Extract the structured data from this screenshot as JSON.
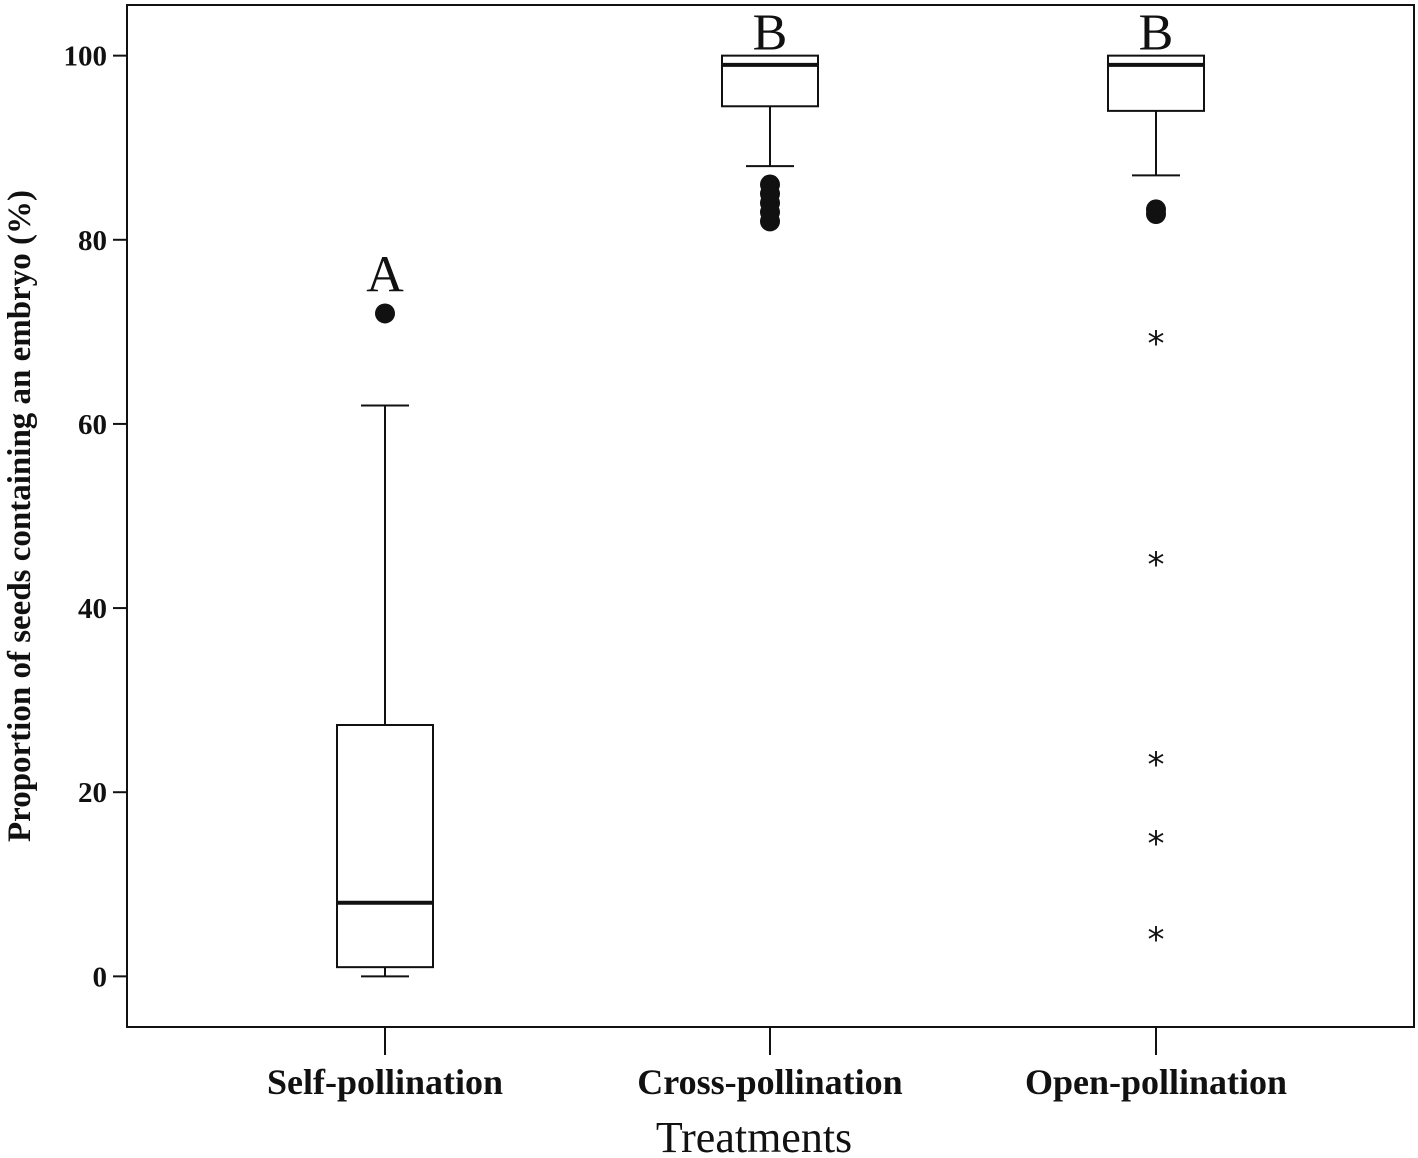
{
  "chart_data": {
    "type": "box",
    "xlabel": "Treatments",
    "ylabel": "Proportion of seeds containing an embryo (%)",
    "ylim": [
      -5.5,
      105.5
    ],
    "yticks": [
      "0",
      "20",
      "40",
      "60",
      "80",
      "100"
    ],
    "grid": false,
    "categories": [
      "Self-pollination",
      "Cross-pollination",
      "Open-pollination"
    ],
    "groups": [
      {
        "category": "Self-pollination",
        "letter": "A",
        "whisker_low": 0,
        "q1": 1,
        "median": 8,
        "q3": 27.3,
        "whisker_high": 62,
        "outliers": [
          72
        ],
        "extremes": []
      },
      {
        "category": "Cross-pollination",
        "letter": "B",
        "whisker_low": 88,
        "q1": 94.5,
        "median": 99,
        "q3": 100,
        "whisker_high": 100,
        "outliers": [
          86,
          85,
          84,
          83,
          82
        ],
        "extremes": []
      },
      {
        "category": "Open-pollination",
        "letter": "B",
        "whisker_low": 87,
        "q1": 94,
        "median": 99,
        "q3": 100,
        "whisker_high": 100,
        "outliers": [
          83.3,
          82.8
        ],
        "extremes": [
          69,
          45,
          23.3,
          14.7,
          4.3
        ]
      }
    ]
  }
}
